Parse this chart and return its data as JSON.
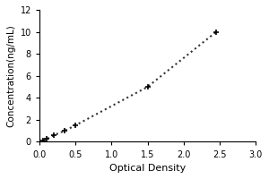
{
  "x_data": [
    0.05,
    0.1,
    0.2,
    0.35,
    0.5,
    1.5,
    2.45
  ],
  "y_data": [
    0.1,
    0.25,
    0.6,
    1.0,
    1.5,
    5.0,
    10.0
  ],
  "xlabel": "Optical Density",
  "ylabel": "Concentration(ng/mL)",
  "xlim": [
    0,
    3
  ],
  "ylim": [
    0,
    12
  ],
  "xticks": [
    0,
    0.5,
    1,
    1.5,
    2,
    2.5,
    3
  ],
  "yticks": [
    0,
    2,
    4,
    6,
    8,
    10,
    12
  ],
  "line_color": "#333333",
  "marker_color": "#000000",
  "line_style": "dotted",
  "marker_style": "+",
  "marker_size": 5,
  "marker_linewidth": 1.2,
  "line_width": 1.5,
  "xlabel_fontsize": 8,
  "ylabel_fontsize": 7.5,
  "tick_fontsize": 7,
  "background_color": "#ffffff",
  "figsize": [
    3.0,
    2.0
  ],
  "dpi": 100
}
